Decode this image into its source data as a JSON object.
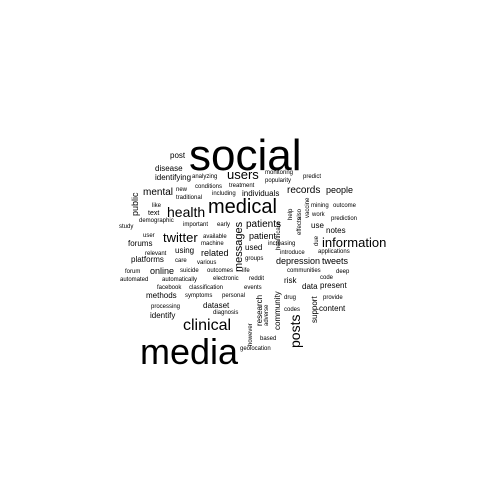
{
  "words": {
    "social": "social",
    "media": "media",
    "medical": "medical",
    "clinical": "clinical",
    "health": "health",
    "twitter": "twitter",
    "information": "information",
    "users": "users",
    "posts": "posts",
    "messages": "messages",
    "patients": "patients",
    "patient": "patient",
    "mental": "mental",
    "public": "public",
    "records": "records",
    "people": "people",
    "tweets": "tweets",
    "depression": "depression",
    "identifying": "identifying",
    "disease": "disease",
    "post": "post",
    "forums": "forums",
    "platforms": "platforms",
    "online": "online",
    "related": "related",
    "using": "using",
    "dataset": "dataset",
    "methods": "methods",
    "identify": "identify",
    "community": "community",
    "research": "research",
    "support": "support",
    "content": "content",
    "present": "present",
    "data": "data",
    "risk": "risk",
    "use": "use",
    "notes": "notes",
    "used": "used",
    "individuals": "individuals",
    "text": "text",
    "like": "like",
    "monitoring": "monitoring",
    "popularity": "popularity",
    "predict": "predict",
    "analyzing": "analyzing",
    "new": "new",
    "traditional": "traditional",
    "conditions": "conditions",
    "treatment": "treatment",
    "including": "including",
    "demographic": "demographic",
    "study": "study",
    "user": "user",
    "relevant": "relevant",
    "care": "care",
    "various": "various",
    "available": "available",
    "machine": "machine",
    "important": "important",
    "early": "early",
    "forum": "forum",
    "automated": "automated",
    "suicide": "suicide",
    "automatically": "automatically",
    "facebook": "facebook",
    "classification": "classification",
    "outcomes": "outcomes",
    "life": "life",
    "electronic": "electronic",
    "events": "events",
    "symptoms": "symptoms",
    "personal": "personal",
    "processing": "processing",
    "diagnosis": "diagnosis",
    "groups": "groups",
    "increasing": "increasing",
    "introduce": "introduce",
    "communities": "communities",
    "reddit": "reddit",
    "drug": "drug",
    "codes": "codes",
    "based": "based",
    "geolocation": "geolocation",
    "however": "however",
    "adverse": "adverse",
    "healthcare": "healthcare",
    "help": "help",
    "also": "also",
    "effects": "effects",
    "vaccine": "vaccine",
    "mining": "mining",
    "outcome": "outcome",
    "work": "work",
    "prediction": "prediction",
    "applications": "applications",
    "deep": "deep",
    "code": "code",
    "provide": "provide",
    "due": "due"
  }
}
